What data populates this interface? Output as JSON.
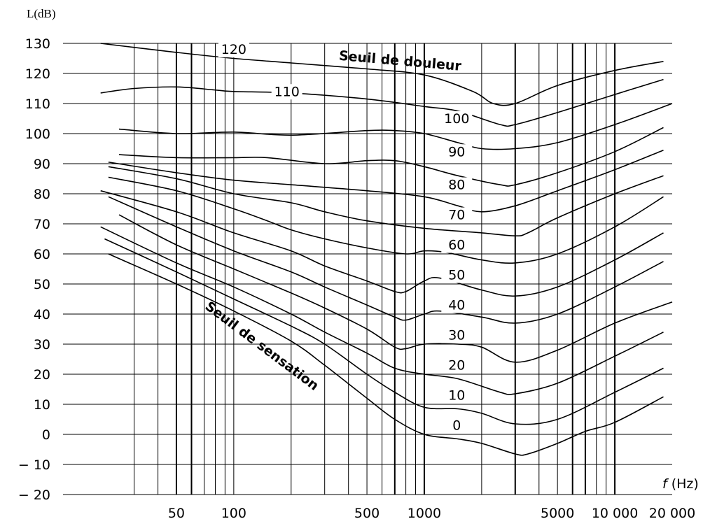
{
  "chart_data": {
    "type": "line",
    "ylabel": "L(dB)",
    "xlabel_symbol": "f",
    "xlabel_unit": "(Hz)",
    "x_scale": "log",
    "ylim": [
      -20,
      130
    ],
    "yticks": [
      "130",
      "120",
      "110",
      "100",
      "90",
      "80",
      "70",
      "60",
      "50",
      "40",
      "30",
      "20",
      "10",
      "0",
      "− 10",
      "− 20"
    ],
    "ytick_values": [
      130,
      120,
      110,
      100,
      90,
      80,
      70,
      60,
      50,
      40,
      30,
      20,
      10,
      0,
      -10,
      -20
    ],
    "xtick_labels": [
      {
        "value": 50,
        "text": "50"
      },
      {
        "value": 100,
        "text": "100"
      },
      {
        "value": 500,
        "text": "500"
      },
      {
        "value": 1000,
        "text": "1000"
      },
      {
        "value": 5000,
        "text": "5000"
      },
      {
        "value": 10000,
        "text": "10 000"
      },
      {
        "value": 20000,
        "text": "20 000"
      }
    ],
    "x_gridlines": [
      30,
      40,
      50,
      60,
      70,
      80,
      90,
      100,
      200,
      300,
      400,
      500,
      600,
      700,
      800,
      900,
      1000,
      2000,
      3000,
      4000,
      5000,
      6000,
      7000,
      8000,
      9000,
      10000
    ],
    "x_major_gridlines": [
      50,
      60,
      700,
      1000,
      3000,
      6000,
      7000,
      10000
    ],
    "grid": true,
    "series": [
      {
        "name": "120",
        "points": [
          [
            20,
            130
          ],
          [
            50,
            127
          ],
          [
            100,
            125
          ],
          [
            200,
            123.5
          ],
          [
            500,
            121.5
          ],
          [
            1000,
            119.5
          ],
          [
            1800,
            114
          ],
          [
            2300,
            110
          ],
          [
            3000,
            110
          ],
          [
            5000,
            116
          ],
          [
            10000,
            121
          ],
          [
            18000,
            124
          ]
        ]
      },
      {
        "name": "110",
        "points": [
          [
            20,
            113.5
          ],
          [
            30,
            115
          ],
          [
            50,
            115.5
          ],
          [
            80,
            114.5
          ],
          [
            100,
            114
          ],
          [
            200,
            113.5
          ],
          [
            500,
            111.5
          ],
          [
            1000,
            109
          ],
          [
            1500,
            107.5
          ],
          [
            2500,
            103
          ],
          [
            3000,
            103
          ],
          [
            5000,
            107
          ],
          [
            10000,
            113
          ],
          [
            18000,
            118
          ]
        ]
      },
      {
        "name": "100",
        "points": [
          [
            25,
            101.5
          ],
          [
            50,
            100
          ],
          [
            100,
            100.5
          ],
          [
            200,
            99.5
          ],
          [
            500,
            101
          ],
          [
            700,
            101
          ],
          [
            1000,
            100
          ],
          [
            1500,
            97
          ],
          [
            2000,
            95
          ],
          [
            3000,
            95
          ],
          [
            5000,
            97
          ],
          [
            10000,
            103
          ],
          [
            20000,
            110
          ]
        ]
      },
      {
        "name": "90",
        "points": [
          [
            25,
            93
          ],
          [
            50,
            92
          ],
          [
            100,
            92
          ],
          [
            150,
            92
          ],
          [
            300,
            90
          ],
          [
            500,
            91
          ],
          [
            700,
            91
          ],
          [
            1000,
            89
          ],
          [
            1500,
            86
          ],
          [
            2500,
            83
          ],
          [
            3000,
            83
          ],
          [
            5000,
            87
          ],
          [
            10000,
            94
          ],
          [
            18000,
            102
          ]
        ]
      },
      {
        "name": "80",
        "points": [
          [
            22,
            90.5
          ],
          [
            50,
            87
          ],
          [
            100,
            84.5
          ],
          [
            200,
            83
          ],
          [
            500,
            81
          ],
          [
            1000,
            79
          ],
          [
            1500,
            76
          ],
          [
            2000,
            74
          ],
          [
            3000,
            76
          ],
          [
            5000,
            81
          ],
          [
            10000,
            88
          ],
          [
            18000,
            94.5
          ]
        ]
      },
      {
        "name": "70",
        "points": [
          [
            22,
            89
          ],
          [
            50,
            85
          ],
          [
            100,
            80
          ],
          [
            200,
            77
          ],
          [
            300,
            74
          ],
          [
            500,
            71
          ],
          [
            1000,
            68.5
          ],
          [
            2000,
            67
          ],
          [
            3000,
            66
          ],
          [
            3500,
            67
          ],
          [
            5000,
            72
          ],
          [
            10000,
            80
          ],
          [
            18000,
            86
          ]
        ]
      },
      {
        "name": "60",
        "points": [
          [
            22,
            85.5
          ],
          [
            50,
            81
          ],
          [
            100,
            75
          ],
          [
            150,
            71
          ],
          [
            200,
            68
          ],
          [
            300,
            65
          ],
          [
            500,
            62
          ],
          [
            800,
            60
          ],
          [
            1000,
            61
          ],
          [
            1300,
            60.5
          ],
          [
            2000,
            58
          ],
          [
            3000,
            57
          ],
          [
            5000,
            60
          ],
          [
            10000,
            69
          ],
          [
            18000,
            79
          ]
        ]
      },
      {
        "name": "50",
        "points": [
          [
            20,
            81
          ],
          [
            50,
            74
          ],
          [
            100,
            67
          ],
          [
            200,
            61
          ],
          [
            300,
            56
          ],
          [
            500,
            51
          ],
          [
            700,
            47.5
          ],
          [
            800,
            47.5
          ],
          [
            1000,
            51
          ],
          [
            1200,
            52
          ],
          [
            2000,
            48
          ],
          [
            3000,
            46
          ],
          [
            5000,
            49
          ],
          [
            10000,
            58
          ],
          [
            18000,
            67
          ]
        ]
      },
      {
        "name": "40",
        "points": [
          [
            22,
            79
          ],
          [
            50,
            69
          ],
          [
            100,
            61
          ],
          [
            200,
            54
          ],
          [
            300,
            49
          ],
          [
            500,
            43
          ],
          [
            700,
            39
          ],
          [
            800,
            38
          ],
          [
            1000,
            40
          ],
          [
            1200,
            41
          ],
          [
            2000,
            39
          ],
          [
            3000,
            37
          ],
          [
            5000,
            40
          ],
          [
            10000,
            49
          ],
          [
            18000,
            57.5
          ]
        ]
      },
      {
        "name": "30",
        "points": [
          [
            25,
            73
          ],
          [
            50,
            63
          ],
          [
            100,
            55
          ],
          [
            200,
            47
          ],
          [
            300,
            42
          ],
          [
            500,
            35
          ],
          [
            700,
            29
          ],
          [
            800,
            28.5
          ],
          [
            1000,
            30
          ],
          [
            1500,
            30
          ],
          [
            2000,
            29
          ],
          [
            3000,
            24
          ],
          [
            5000,
            28
          ],
          [
            10000,
            37
          ],
          [
            20000,
            44
          ]
        ]
      },
      {
        "name": "20",
        "points": [
          [
            20,
            69
          ],
          [
            50,
            57
          ],
          [
            100,
            49
          ],
          [
            200,
            40
          ],
          [
            300,
            34
          ],
          [
            500,
            27
          ],
          [
            700,
            22
          ],
          [
            1000,
            20
          ],
          [
            1500,
            18.5
          ],
          [
            2500,
            14
          ],
          [
            3000,
            13.5
          ],
          [
            5000,
            17
          ],
          [
            10000,
            26
          ],
          [
            18000,
            34
          ]
        ]
      },
      {
        "name": "10",
        "points": [
          [
            21,
            65
          ],
          [
            50,
            54
          ],
          [
            100,
            45
          ],
          [
            200,
            36
          ],
          [
            300,
            30
          ],
          [
            500,
            20
          ],
          [
            700,
            14
          ],
          [
            1000,
            9
          ],
          [
            1500,
            8.5
          ],
          [
            2000,
            7
          ],
          [
            3000,
            3.5
          ],
          [
            5000,
            5
          ],
          [
            10000,
            14
          ],
          [
            18000,
            22
          ]
        ]
      },
      {
        "name": "0",
        "points": [
          [
            22,
            60
          ],
          [
            50,
            50
          ],
          [
            100,
            41
          ],
          [
            200,
            31
          ],
          [
            300,
            23
          ],
          [
            500,
            12
          ],
          [
            700,
            5
          ],
          [
            1000,
            0
          ],
          [
            1500,
            -1.5
          ],
          [
            2000,
            -3
          ],
          [
            3000,
            -6.5
          ],
          [
            3500,
            -6.5
          ],
          [
            5000,
            -3
          ],
          [
            7000,
            1
          ],
          [
            10000,
            4
          ],
          [
            18000,
            12.5
          ]
        ]
      }
    ],
    "curve_labels": [
      {
        "text": "120",
        "x": 100,
        "y": 126.5
      },
      {
        "text": "110",
        "x": 190,
        "y": 112.5
      },
      {
        "text": "100",
        "x": 1480,
        "y": 103.5
      },
      {
        "text": "90",
        "x": 1480,
        "y": 92.5
      },
      {
        "text": "80",
        "x": 1480,
        "y": 81.5
      },
      {
        "text": "70",
        "x": 1480,
        "y": 71.5
      },
      {
        "text": "60",
        "x": 1480,
        "y": 61.5
      },
      {
        "text": "50",
        "x": 1480,
        "y": 51.5
      },
      {
        "text": "40",
        "x": 1480,
        "y": 41.5
      },
      {
        "text": "30",
        "x": 1480,
        "y": 31.5
      },
      {
        "text": "20",
        "x": 1480,
        "y": 21.5
      },
      {
        "text": "10",
        "x": 1480,
        "y": 11.5
      },
      {
        "text": "0",
        "x": 1480,
        "y": 1.5
      }
    ],
    "annotations": [
      {
        "text": "Seuil de douleur",
        "x": 355,
        "y": 124.5,
        "angle": 5
      },
      {
        "text": "Seuil de sensation",
        "x": 70,
        "y": 42,
        "angle": 37
      }
    ]
  }
}
